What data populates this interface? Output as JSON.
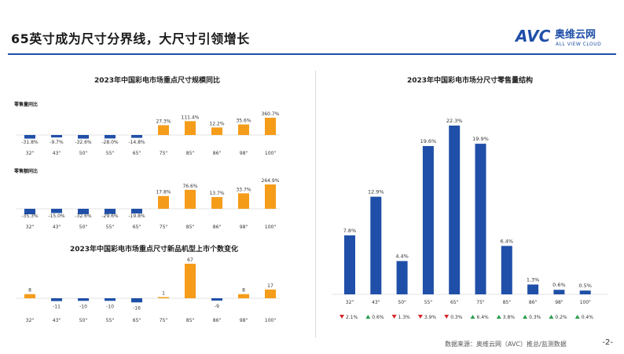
{
  "page": {
    "title": "65英寸成为尺寸分界线，大尺寸引领增长",
    "logo_name": "奥维云网",
    "logo_sub": "ALL VIEW CLOUD",
    "source": "数据来源：奥维云网（AVC）推总/监测数据",
    "page_number": "-2-"
  },
  "colors": {
    "up": "#f59c1a",
    "down": "#1f4fa8",
    "accent": "#1f4fa8",
    "green": "#2e9e4f",
    "red": "#d62828"
  },
  "chart_data": [
    {
      "type": "bar",
      "title": "2023年中国彩电市场重点尺寸规模同比",
      "categories": [
        "32\"",
        "43\"",
        "50\"",
        "55\"",
        "65\"",
        "75\"",
        "85\"",
        "86\"",
        "98\"",
        "100\""
      ],
      "series": [
        {
          "name": "零售量同比",
          "values": [
            -31.8,
            -9.7,
            -32.6,
            -28.0,
            -14.8,
            27.3,
            111.4,
            12.2,
            35.6,
            360.7
          ],
          "labels": [
            "-31.8%",
            "-9.7%",
            "-32.6%",
            "-28.0%",
            "-14.8%",
            "27.3%",
            "111.4%",
            "12.2%",
            "35.6%",
            "360.7%"
          ]
        },
        {
          "name": "零售额同比",
          "values": [
            -35.3,
            -15.0,
            -32.6,
            -29.6,
            -19.8,
            17.8,
            76.6,
            13.7,
            33.7,
            264.9
          ],
          "labels": [
            "-35.3%",
            "-15.0%",
            "-32.6%",
            "-29.6%",
            "-19.8%",
            "17.8%",
            "76.6%",
            "13.7%",
            "33.7%",
            "264.9%"
          ]
        }
      ]
    },
    {
      "type": "bar",
      "title": "2023年中国彩电市场重点尺寸新品机型上市个数变化",
      "categories": [
        "32\"",
        "43\"",
        "50\"",
        "55\"",
        "65\"",
        "75\"",
        "85\"",
        "86\"",
        "98\"",
        "100\""
      ],
      "values": [
        8,
        -11,
        -10,
        -10,
        -16,
        1,
        67,
        -9,
        8,
        17
      ],
      "labels": [
        "8",
        "-11",
        "-10",
        "-10",
        "-16",
        "1",
        "67",
        "-9",
        "8",
        "17"
      ]
    },
    {
      "type": "bar",
      "title": "2023年中国彩电市场分尺寸零售量结构",
      "categories": [
        "32\"",
        "43\"",
        "50\"",
        "55\"",
        "65\"",
        "75\"",
        "85\"",
        "86\"",
        "98\"",
        "100\""
      ],
      "values": [
        7.8,
        12.9,
        4.4,
        19.6,
        22.3,
        19.9,
        6.4,
        1.3,
        0.6,
        0.5
      ],
      "labels": [
        "7.8%",
        "12.9%",
        "4.4%",
        "19.6%",
        "22.3%",
        "19.9%",
        "6.4%",
        "1.3%",
        "0.6%",
        "0.5%"
      ],
      "changes": [
        {
          "dir": "down",
          "text": "2.1%"
        },
        {
          "dir": "up",
          "text": "0.6%"
        },
        {
          "dir": "down",
          "text": "1.3%"
        },
        {
          "dir": "down",
          "text": "3.9%"
        },
        {
          "dir": "down",
          "text": "0.3%"
        },
        {
          "dir": "up",
          "text": "6.4%"
        },
        {
          "dir": "up",
          "text": "3.8%"
        },
        {
          "dir": "up",
          "text": "0.3%"
        },
        {
          "dir": "up",
          "text": "0.2%"
        },
        {
          "dir": "up",
          "text": "0.4%"
        }
      ]
    }
  ]
}
